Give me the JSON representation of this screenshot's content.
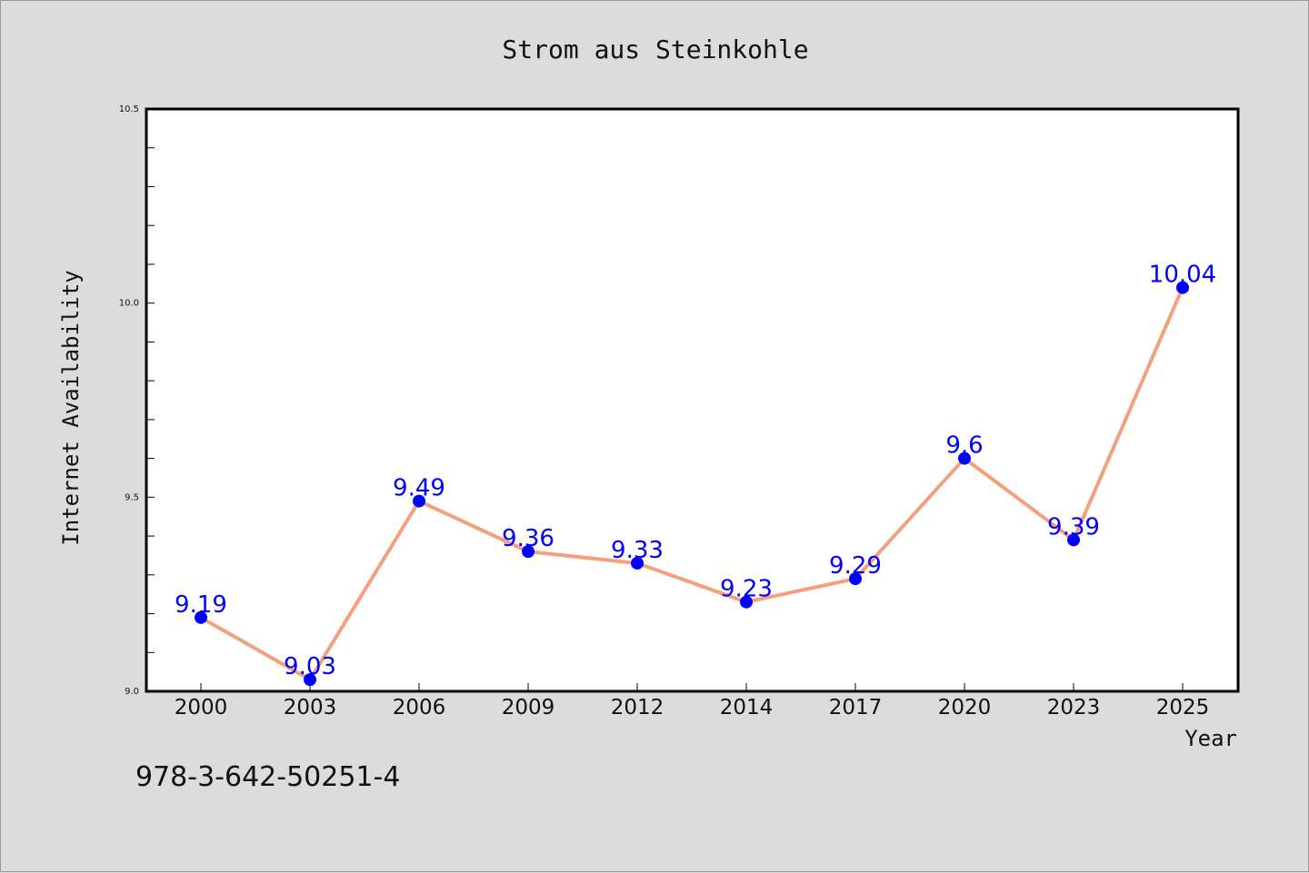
{
  "chart_data": {
    "type": "line",
    "title": "Strom aus Steinkohle",
    "xlabel": "Year",
    "ylabel": "Internet Availability",
    "categories": [
      "2000",
      "2003",
      "2006",
      "2009",
      "2012",
      "2014",
      "2017",
      "2020",
      "2023",
      "2025"
    ],
    "series": [
      {
        "values": [
          9.19,
          9.03,
          9.49,
          9.36,
          9.33,
          9.23,
          9.29,
          9.6,
          9.39,
          10.04
        ],
        "labels": [
          "9.19",
          "9.03",
          "9.49",
          "9.36",
          "9.33",
          "9.23",
          "9.29",
          "9.6",
          "9.39",
          "10.04"
        ],
        "line_color": "#f4a07e",
        "marker_color": "#0000ff",
        "label_color": "#0000ff"
      }
    ],
    "ylim": [
      9.0,
      10.5
    ],
    "yticks": [
      "9.0",
      "9.5",
      "10.0",
      "10.5"
    ],
    "yminor_step": 0.1,
    "grid": false,
    "background": "#dcdcdc",
    "plot_background": "#ffffff"
  },
  "footer_text": "978-3-642-50251-4"
}
